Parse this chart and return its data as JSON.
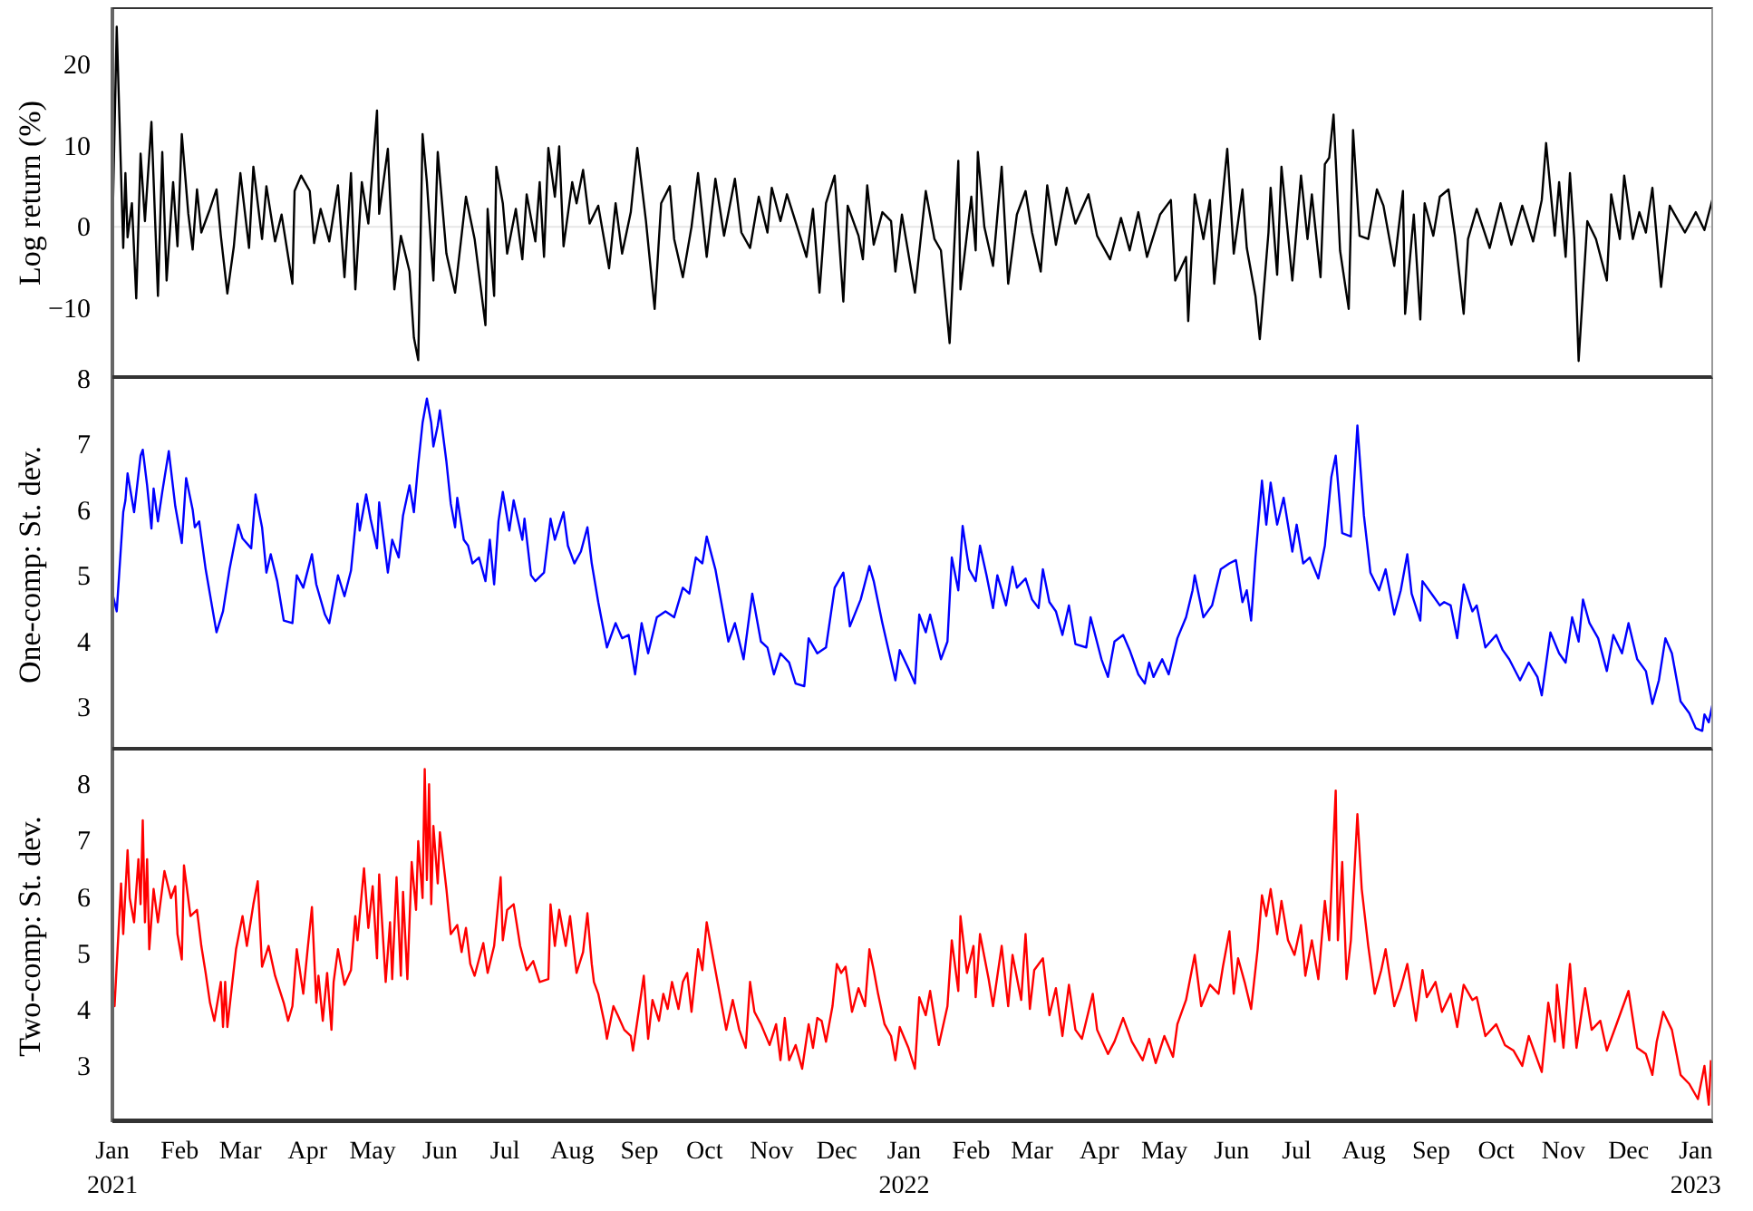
{
  "chart_data": [
    {
      "type": "line",
      "ylabel": "Log return (%)",
      "tick_labels": "y",
      "xlim": [
        "2021-01-01",
        "2023-01-09"
      ],
      "ylim": [
        -18.7,
        27
      ],
      "yticks": [
        -10,
        0,
        10,
        20
      ],
      "color": "#000000",
      "ref_lines": [
        {
          "axis": "y",
          "value": 0,
          "color": "#e6e6e6"
        }
      ],
      "x": [
        "2021-01-01",
        "2021-01-03",
        "2021-01-06",
        "2021-01-07",
        "2021-01-08",
        "2021-01-10",
        "2021-01-12",
        "2021-01-14",
        "2021-01-16",
        "2021-01-19",
        "2021-01-22",
        "2021-01-24",
        "2021-01-26",
        "2021-01-29",
        "2021-01-31",
        "2021-02-02",
        "2021-02-05",
        "2021-02-07",
        "2021-02-09",
        "2021-02-11",
        "2021-02-15",
        "2021-02-18",
        "2021-02-20",
        "2021-02-23",
        "2021-02-26",
        "2021-03-01",
        "2021-03-05",
        "2021-03-07",
        "2021-03-11",
        "2021-03-13",
        "2021-03-17",
        "2021-03-20",
        "2021-03-25",
        "2021-03-26",
        "2021-03-29",
        "2021-04-02",
        "2021-04-04",
        "2021-04-07",
        "2021-04-11",
        "2021-04-15",
        "2021-04-18",
        "2021-04-21",
        "2021-04-23",
        "2021-04-26",
        "2021-04-29",
        "2021-05-03",
        "2021-05-04",
        "2021-05-08",
        "2021-05-11",
        "2021-05-14",
        "2021-05-18",
        "2021-05-20",
        "2021-05-22",
        "2021-05-24",
        "2021-05-26",
        "2021-05-29",
        "2021-05-31",
        "2021-06-04",
        "2021-06-08",
        "2021-06-13",
        "2021-06-17",
        "2021-06-22",
        "2021-06-23",
        "2021-06-26",
        "2021-06-27",
        "2021-06-30",
        "2021-07-02",
        "2021-07-06",
        "2021-07-09",
        "2021-07-11",
        "2021-07-15",
        "2021-07-17",
        "2021-07-19",
        "2021-07-21",
        "2021-07-24",
        "2021-07-26",
        "2021-07-28",
        "2021-08-01",
        "2021-08-03",
        "2021-08-06",
        "2021-08-09",
        "2021-08-13",
        "2021-08-18",
        "2021-08-21",
        "2021-08-24",
        "2021-08-28",
        "2021-08-31",
        "2021-09-04",
        "2021-09-08",
        "2021-09-11",
        "2021-09-15",
        "2021-09-17",
        "2021-09-21",
        "2021-09-25",
        "2021-09-28",
        "2021-10-02",
        "2021-10-06",
        "2021-10-10",
        "2021-10-15",
        "2021-10-18",
        "2021-10-22",
        "2021-10-26",
        "2021-10-30",
        "2021-11-01",
        "2021-11-05",
        "2021-11-08",
        "2021-11-14",
        "2021-11-17",
        "2021-11-20",
        "2021-11-23",
        "2021-11-26",
        "2021-11-30",
        "2021-12-04",
        "2021-12-06",
        "2021-12-11",
        "2021-12-13",
        "2021-12-15",
        "2021-12-18",
        "2021-12-22",
        "2021-12-26",
        "2021-12-28",
        "2021-12-31",
        "2022-01-06",
        "2022-01-11",
        "2022-01-15",
        "2022-01-18",
        "2022-01-22",
        "2022-01-26",
        "2022-01-27",
        "2022-02-01",
        "2022-02-03",
        "2022-02-04",
        "2022-02-07",
        "2022-02-11",
        "2022-02-15",
        "2022-02-18",
        "2022-02-22",
        "2022-02-26",
        "2022-03-01",
        "2022-03-05",
        "2022-03-08",
        "2022-03-12",
        "2022-03-17",
        "2022-03-21",
        "2022-03-27",
        "2022-03-31",
        "2022-04-06",
        "2022-04-11",
        "2022-04-15",
        "2022-04-19",
        "2022-04-23",
        "2022-04-29",
        "2022-05-04",
        "2022-05-06",
        "2022-05-11",
        "2022-05-12",
        "2022-05-15",
        "2022-05-19",
        "2022-05-22",
        "2022-05-24",
        "2022-05-30",
        "2022-06-02",
        "2022-06-06",
        "2022-06-08",
        "2022-06-12",
        "2022-06-14",
        "2022-06-18",
        "2022-06-19",
        "2022-06-22",
        "2022-06-24",
        "2022-06-29",
        "2022-07-03",
        "2022-07-06",
        "2022-07-08",
        "2022-07-12",
        "2022-07-14",
        "2022-07-16",
        "2022-07-18",
        "2022-07-21",
        "2022-07-25",
        "2022-07-27",
        "2022-07-30",
        "2022-08-03",
        "2022-08-07",
        "2022-08-10",
        "2022-08-15",
        "2022-08-19",
        "2022-08-20",
        "2022-08-24",
        "2022-08-27",
        "2022-08-29",
        "2022-09-02",
        "2022-09-05",
        "2022-09-09",
        "2022-09-12",
        "2022-09-16",
        "2022-09-18",
        "2022-09-22",
        "2022-09-28",
        "2022-10-03",
        "2022-10-08",
        "2022-10-13",
        "2022-10-18",
        "2022-10-22",
        "2022-10-24",
        "2022-10-28",
        "2022-10-30",
        "2022-11-02",
        "2022-11-04",
        "2022-11-06",
        "2022-11-08",
        "2022-11-12",
        "2022-11-16",
        "2022-11-21",
        "2022-11-23",
        "2022-11-27",
        "2022-11-29",
        "2022-12-03",
        "2022-12-06",
        "2022-12-09",
        "2022-12-12",
        "2022-12-16",
        "2022-12-20",
        "2022-12-27",
        "2023-01-01",
        "2023-01-05",
        "2023-01-09"
      ],
      "values": [
        -0.7,
        24.6,
        -2.6,
        6.6,
        -1.3,
        2.9,
        -8.8,
        9,
        0.7,
        12.9,
        -8.5,
        9.2,
        -6.6,
        5.5,
        -2.4,
        11.4,
        1.6,
        -2.8,
        4.6,
        -0.7,
        2.2,
        4.6,
        -1.1,
        -8.2,
        -2.4,
        6.6,
        -2.6,
        7.4,
        -1.5,
        5,
        -1.8,
        1.5,
        -7,
        4.4,
        6.3,
        4.4,
        -2,
        2.2,
        -1.8,
        5.1,
        -6.2,
        6.6,
        -7.7,
        5.5,
        0.4,
        14.3,
        1.6,
        9.6,
        -7.7,
        -1.1,
        -5.5,
        -13.6,
        -16.4,
        11.4,
        5.5,
        -6.6,
        9.2,
        -3.3,
        -8.1,
        3.7,
        -1.5,
        -12.1,
        2.2,
        -8.5,
        7.4,
        2.9,
        -3.3,
        2.2,
        -4,
        4,
        -1.8,
        5.5,
        -3.7,
        9.7,
        3.7,
        9.9,
        -2.4,
        5.5,
        2.9,
        7,
        0.4,
        2.6,
        -5.1,
        2.9,
        -3.3,
        1.8,
        9.7,
        0.7,
        -10.1,
        2.9,
        5,
        -1.5,
        -6.2,
        0,
        6.6,
        -3.7,
        5.9,
        -1.1,
        5.9,
        -0.7,
        -2.6,
        3.7,
        -0.7,
        4.8,
        0.7,
        4,
        -1.1,
        -3.7,
        2.2,
        -8.1,
        2.9,
        6.3,
        -9.2,
        2.6,
        -1.1,
        -4,
        5.1,
        -2.2,
        1.8,
        0.7,
        -5.5,
        1.5,
        -8.1,
        4.4,
        -1.5,
        -2.9,
        -14.3,
        8.1,
        -7.7,
        3.7,
        -2.9,
        9.2,
        0,
        -4.8,
        7.4,
        -7,
        1.5,
        4.4,
        -0.7,
        -5.5,
        5.1,
        -2.2,
        4.8,
        0.4,
        4,
        -1.1,
        -4,
        1.1,
        -2.9,
        1.8,
        -3.7,
        1.5,
        3.3,
        -6.6,
        -3.7,
        -11.6,
        4,
        -1.5,
        3.3,
        -7,
        9.6,
        -3.3,
        4.6,
        -2.6,
        -8.5,
        -13.8,
        -0.7,
        4.8,
        -5.9,
        7.4,
        -6.6,
        6.3,
        -1.5,
        4,
        -6.2,
        7.7,
        8.5,
        13.8,
        -2.9,
        -10.1,
        11.9,
        -1.1,
        -1.5,
        4.6,
        2.6,
        -4.8,
        4.4,
        -10.7,
        1.5,
        -11.4,
        2.9,
        -1.1,
        3.7,
        4.6,
        -1.1,
        -10.7,
        -1.5,
        2.2,
        -2.6,
        2.9,
        -2.2,
        2.6,
        -1.8,
        3.3,
        10.3,
        -1.1,
        5.5,
        -3.7,
        6.6,
        -1.5,
        -16.5,
        0.7,
        -1.5,
        -6.6,
        4,
        -1.5,
        6.3,
        -1.5,
        1.8,
        -0.7,
        4.8,
        -7.4,
        2.6,
        -0.7,
        1.8,
        -0.4,
        3.7
      ]
    },
    {
      "type": "line",
      "ylabel": "One-comp: St. dev.",
      "tick_labels": "y",
      "xlim": [
        "2021-01-01",
        "2023-01-09"
      ],
      "ylim": [
        2.34,
        8
      ],
      "yticks": [
        3,
        4,
        5,
        6,
        7,
        8
      ],
      "color": "#0000ff",
      "x": [
        "2021-01-01",
        "2021-01-03",
        "2021-01-06",
        "2021-01-07",
        "2021-01-08",
        "2021-01-11",
        "2021-01-14",
        "2021-01-15",
        "2021-01-17",
        "2021-01-19",
        "2021-01-20",
        "2021-01-22",
        "2021-01-24",
        "2021-01-27",
        "2021-01-30",
        "2021-02-02",
        "2021-02-04",
        "2021-02-07",
        "2021-02-08",
        "2021-02-10",
        "2021-02-13",
        "2021-02-18",
        "2021-02-21",
        "2021-02-24",
        "2021-02-28",
        "2021-03-02",
        "2021-03-06",
        "2021-03-08",
        "2021-03-11",
        "2021-03-13",
        "2021-03-15",
        "2021-03-18",
        "2021-03-21",
        "2021-03-25",
        "2021-03-27",
        "2021-03-30",
        "2021-04-03",
        "2021-04-05",
        "2021-04-09",
        "2021-04-11",
        "2021-04-15",
        "2021-04-18",
        "2021-04-21",
        "2021-04-24",
        "2021-04-25",
        "2021-04-28",
        "2021-04-30",
        "2021-05-03",
        "2021-05-04",
        "2021-05-08",
        "2021-05-10",
        "2021-05-13",
        "2021-05-15",
        "2021-05-18",
        "2021-05-20",
        "2021-05-22",
        "2021-05-24",
        "2021-05-26",
        "2021-05-28",
        "2021-05-29",
        "2021-05-31",
        "2021-06-01",
        "2021-06-04",
        "2021-06-06",
        "2021-06-08",
        "2021-06-09",
        "2021-06-12",
        "2021-06-14",
        "2021-06-16",
        "2021-06-19",
        "2021-06-22",
        "2021-06-24",
        "2021-06-26",
        "2021-06-28",
        "2021-06-30",
        "2021-07-03",
        "2021-07-05",
        "2021-07-09",
        "2021-07-10",
        "2021-07-13",
        "2021-07-15",
        "2021-07-19",
        "2021-07-22",
        "2021-07-24",
        "2021-07-28",
        "2021-07-30",
        "2021-08-02",
        "2021-08-05",
        "2021-08-08",
        "2021-08-10",
        "2021-08-13",
        "2021-08-17",
        "2021-08-21",
        "2021-08-24",
        "2021-08-27",
        "2021-08-30",
        "2021-09-02",
        "2021-09-05",
        "2021-09-09",
        "2021-09-13",
        "2021-09-17",
        "2021-09-21",
        "2021-09-24",
        "2021-09-27",
        "2021-09-30",
        "2021-10-02",
        "2021-10-06",
        "2021-10-12",
        "2021-10-15",
        "2021-10-19",
        "2021-10-23",
        "2021-10-27",
        "2021-10-30",
        "2021-11-02",
        "2021-11-05",
        "2021-11-09",
        "2021-11-12",
        "2021-11-16",
        "2021-11-18",
        "2021-11-22",
        "2021-11-26",
        "2021-11-30",
        "2021-12-04",
        "2021-12-07",
        "2021-12-12",
        "2021-12-16",
        "2021-12-18",
        "2021-12-22",
        "2021-12-28",
        "2021-12-30",
        "2022-01-03",
        "2022-01-06",
        "2022-01-08",
        "2022-01-11",
        "2022-01-13",
        "2022-01-18",
        "2022-01-21",
        "2022-01-23",
        "2022-01-26",
        "2022-01-28",
        "2022-01-31",
        "2022-02-03",
        "2022-02-05",
        "2022-02-08",
        "2022-02-11",
        "2022-02-13",
        "2022-02-17",
        "2022-02-20",
        "2022-02-22",
        "2022-02-26",
        "2022-03-01",
        "2022-03-04",
        "2022-03-06",
        "2022-03-09",
        "2022-03-12",
        "2022-03-15",
        "2022-03-18",
        "2022-03-21",
        "2022-03-26",
        "2022-03-28",
        "2022-04-02",
        "2022-04-05",
        "2022-04-08",
        "2022-04-12",
        "2022-04-15",
        "2022-04-19",
        "2022-04-22",
        "2022-04-24",
        "2022-04-26",
        "2022-04-30",
        "2022-05-03",
        "2022-05-07",
        "2022-05-11",
        "2022-05-14",
        "2022-05-15",
        "2022-05-19",
        "2022-05-23",
        "2022-05-27",
        "2022-05-31",
        "2022-06-03",
        "2022-06-06",
        "2022-06-08",
        "2022-06-10",
        "2022-06-12",
        "2022-06-15",
        "2022-06-17",
        "2022-06-19",
        "2022-06-22",
        "2022-06-25",
        "2022-06-29",
        "2022-07-01",
        "2022-07-04",
        "2022-07-07",
        "2022-07-11",
        "2022-07-14",
        "2022-07-17",
        "2022-07-19",
        "2022-07-22",
        "2022-07-26",
        "2022-07-29",
        "2022-08-01",
        "2022-08-04",
        "2022-08-08",
        "2022-08-11",
        "2022-08-15",
        "2022-08-18",
        "2022-08-21",
        "2022-08-23",
        "2022-08-27",
        "2022-08-28",
        "2022-09-02",
        "2022-09-05",
        "2022-09-07",
        "2022-09-10",
        "2022-09-13",
        "2022-09-16",
        "2022-09-20",
        "2022-09-22",
        "2022-09-26",
        "2022-10-01",
        "2022-10-04",
        "2022-10-07",
        "2022-10-12",
        "2022-10-16",
        "2022-10-20",
        "2022-10-22",
        "2022-10-26",
        "2022-10-30",
        "2022-11-02",
        "2022-11-05",
        "2022-11-08",
        "2022-11-10",
        "2022-11-13",
        "2022-11-17",
        "2022-11-21",
        "2022-11-24",
        "2022-11-28",
        "2022-12-01",
        "2022-12-05",
        "2022-12-09",
        "2022-12-12",
        "2022-12-15",
        "2022-12-18",
        "2022-12-21",
        "2022-12-25",
        "2022-12-29",
        "2023-01-01",
        "2023-01-04",
        "2023-01-05",
        "2023-01-07",
        "2023-01-09"
      ],
      "values": [
        4.73,
        4.46,
        5.97,
        6.15,
        6.56,
        5.97,
        6.83,
        6.92,
        6.38,
        5.72,
        6.33,
        5.83,
        6.28,
        6.9,
        6.06,
        5.5,
        6.49,
        6.01,
        5.74,
        5.83,
        5.1,
        4.14,
        4.46,
        5.1,
        5.78,
        5.57,
        5.42,
        6.24,
        5.74,
        5.05,
        5.33,
        4.92,
        4.32,
        4.28,
        5.01,
        4.82,
        5.33,
        4.87,
        4.41,
        4.28,
        5.01,
        4.69,
        5.08,
        6.1,
        5.69,
        6.24,
        5.87,
        5.42,
        6.12,
        5.05,
        5.55,
        5.28,
        5.92,
        6.38,
        5.97,
        6.7,
        7.33,
        7.7,
        7.33,
        6.97,
        7.29,
        7.52,
        6.74,
        6.1,
        5.74,
        6.19,
        5.55,
        5.46,
        5.19,
        5.28,
        4.92,
        5.55,
        4.87,
        5.83,
        6.28,
        5.69,
        6.15,
        5.55,
        5.87,
        5.01,
        4.92,
        5.05,
        5.87,
        5.55,
        5.97,
        5.46,
        5.19,
        5.37,
        5.74,
        5.19,
        4.6,
        3.91,
        4.28,
        4.05,
        4.1,
        3.5,
        4.28,
        3.82,
        4.37,
        4.46,
        4.37,
        4.82,
        4.73,
        5.28,
        5.19,
        5.6,
        5.1,
        4.0,
        4.28,
        3.73,
        4.73,
        4.0,
        3.91,
        3.5,
        3.82,
        3.68,
        3.36,
        3.32,
        4.05,
        3.82,
        3.91,
        4.82,
        5.05,
        4.23,
        4.64,
        5.15,
        4.92,
        4.28,
        3.41,
        3.87,
        3.59,
        3.36,
        4.41,
        4.14,
        4.41,
        3.73,
        4.0,
        5.28,
        4.78,
        5.76,
        5.1,
        4.92,
        5.46,
        5.01,
        4.51,
        5.01,
        4.55,
        5.14,
        4.82,
        4.96,
        4.64,
        4.51,
        5.1,
        4.6,
        4.46,
        4.1,
        4.55,
        3.96,
        3.91,
        4.37,
        3.73,
        3.46,
        4.0,
        4.1,
        3.87,
        3.5,
        3.36,
        3.68,
        3.46,
        3.73,
        3.5,
        4.05,
        4.37,
        4.78,
        5.01,
        4.37,
        4.55,
        5.1,
        5.19,
        5.24,
        4.6,
        4.78,
        4.32,
        5.28,
        6.45,
        5.78,
        6.42,
        5.78,
        6.19,
        5.37,
        5.78,
        5.19,
        5.28,
        4.96,
        5.46,
        6.51,
        6.83,
        5.65,
        5.6,
        7.29,
        5.92,
        5.05,
        4.78,
        5.1,
        4.41,
        4.78,
        5.33,
        4.73,
        4.32,
        4.92,
        4.69,
        4.55,
        4.6,
        4.55,
        4.05,
        4.87,
        4.46,
        4.55,
        3.91,
        4.1,
        3.87,
        3.73,
        3.41,
        3.68,
        3.46,
        3.18,
        4.14,
        3.82,
        3.68,
        4.37,
        4.0,
        4.64,
        4.28,
        4.05,
        3.55,
        4.1,
        3.82,
        4.28,
        3.73,
        3.55,
        3.05,
        3.41,
        4.05,
        3.82,
        3.09,
        2.91,
        2.68,
        2.64,
        2.89,
        2.77,
        3.09
      ]
    },
    {
      "type": "line",
      "ylabel": "Two-comp: St. dev.",
      "xlim": [
        "2021-01-01",
        "2023-01-09"
      ],
      "ylim": [
        2.0,
        8.6
      ],
      "yticks": [
        3,
        4,
        5,
        6,
        7,
        8
      ],
      "color": "#ff0000",
      "xticks": [
        {
          "value": "2021-01-01",
          "label": "Jan\n2021"
        },
        {
          "value": "2021-02-01",
          "label": "Feb"
        },
        {
          "value": "2021-03-01",
          "label": "Mar"
        },
        {
          "value": "2021-04-01",
          "label": "Apr"
        },
        {
          "value": "2021-05-01",
          "label": "May"
        },
        {
          "value": "2021-06-01",
          "label": "Jun"
        },
        {
          "value": "2021-07-01",
          "label": "Jul"
        },
        {
          "value": "2021-08-01",
          "label": "Aug"
        },
        {
          "value": "2021-09-01",
          "label": "Sep"
        },
        {
          "value": "2021-10-01",
          "label": "Oct"
        },
        {
          "value": "2021-11-01",
          "label": "Nov"
        },
        {
          "value": "2021-12-01",
          "label": "Dec"
        },
        {
          "value": "2022-01-01",
          "label": "Jan\n2022"
        },
        {
          "value": "2022-02-01",
          "label": "Feb"
        },
        {
          "value": "2022-03-01",
          "label": "Mar"
        },
        {
          "value": "2022-04-01",
          "label": "Apr"
        },
        {
          "value": "2022-05-01",
          "label": "May"
        },
        {
          "value": "2022-06-01",
          "label": "Jun"
        },
        {
          "value": "2022-07-01",
          "label": "Jul"
        },
        {
          "value": "2022-08-01",
          "label": "Aug"
        },
        {
          "value": "2022-09-01",
          "label": "Sep"
        },
        {
          "value": "2022-10-01",
          "label": "Oct"
        },
        {
          "value": "2022-11-01",
          "label": "Nov"
        },
        {
          "value": "2022-12-01",
          "label": "Dec"
        },
        {
          "value": "2023-01-01",
          "label": "Jan\n2023"
        }
      ],
      "x": [
        "2021-01-01",
        "2021-01-02",
        "2021-01-05",
        "2021-01-06",
        "2021-01-08",
        "2021-01-09",
        "2021-01-11",
        "2021-01-13",
        "2021-01-14",
        "2021-01-15",
        "2021-01-16",
        "2021-01-17",
        "2021-01-18",
        "2021-01-20",
        "2021-01-22",
        "2021-01-25",
        "2021-01-28",
        "2021-01-30",
        "2021-01-31",
        "2021-02-02",
        "2021-02-03",
        "2021-02-06",
        "2021-02-09",
        "2021-02-11",
        "2021-02-13",
        "2021-02-15",
        "2021-02-17",
        "2021-02-20",
        "2021-02-21",
        "2021-02-22",
        "2021-02-23",
        "2021-02-25",
        "2021-02-27",
        "2021-03-02",
        "2021-03-04",
        "2021-03-07",
        "2021-03-09",
        "2021-03-11",
        "2021-03-14",
        "2021-03-17",
        "2021-03-21",
        "2021-03-23",
        "2021-03-25",
        "2021-03-27",
        "2021-03-30",
        "2021-04-01",
        "2021-04-03",
        "2021-04-05",
        "2021-04-06",
        "2021-04-08",
        "2021-04-10",
        "2021-04-12",
        "2021-04-13",
        "2021-04-15",
        "2021-04-18",
        "2021-04-21",
        "2021-04-23",
        "2021-04-24",
        "2021-04-27",
        "2021-04-29",
        "2021-05-01",
        "2021-05-03",
        "2021-05-04",
        "2021-05-07",
        "2021-05-09",
        "2021-05-10",
        "2021-05-12",
        "2021-05-14",
        "2021-05-15",
        "2021-05-17",
        "2021-05-19",
        "2021-05-21",
        "2021-05-22",
        "2021-05-24",
        "2021-05-25",
        "2021-05-26",
        "2021-05-27",
        "2021-05-28",
        "2021-05-29",
        "2021-05-31",
        "2021-06-01",
        "2021-06-04",
        "2021-06-06",
        "2021-06-09",
        "2021-06-11",
        "2021-06-13",
        "2021-06-15",
        "2021-06-17",
        "2021-06-21",
        "2021-06-23",
        "2021-06-26",
        "2021-06-29",
        "2021-06-30",
        "2021-07-02",
        "2021-07-05",
        "2021-07-08",
        "2021-07-11",
        "2021-07-14",
        "2021-07-17",
        "2021-07-21",
        "2021-07-22",
        "2021-07-24",
        "2021-07-26",
        "2021-07-29",
        "2021-07-31",
        "2021-08-03",
        "2021-08-06",
        "2021-08-08",
        "2021-08-10",
        "2021-08-11",
        "2021-08-13",
        "2021-08-16",
        "2021-08-17",
        "2021-08-20",
        "2021-08-22",
        "2021-08-25",
        "2021-08-28",
        "2021-08-29",
        "2021-09-01",
        "2021-09-03",
        "2021-09-05",
        "2021-09-07",
        "2021-09-10",
        "2021-09-12",
        "2021-09-14",
        "2021-09-16",
        "2021-09-19",
        "2021-09-21",
        "2021-09-23",
        "2021-09-25",
        "2021-09-28",
        "2021-09-30",
        "2021-10-02",
        "2021-10-05",
        "2021-10-08",
        "2021-10-11",
        "2021-10-14",
        "2021-10-17",
        "2021-10-20",
        "2021-10-22",
        "2021-10-24",
        "2021-10-27",
        "2021-10-31",
        "2021-11-03",
        "2021-11-05",
        "2021-11-07",
        "2021-11-09",
        "2021-11-12",
        "2021-11-15",
        "2021-11-18",
        "2021-11-20",
        "2021-11-22",
        "2021-11-24",
        "2021-11-26",
        "2021-11-29",
        "2021-12-01",
        "2021-12-03",
        "2021-12-05",
        "2021-12-08",
        "2021-12-11",
        "2021-12-14",
        "2021-12-16",
        "2021-12-18",
        "2021-12-20",
        "2021-12-23",
        "2021-12-26",
        "2021-12-28",
        "2021-12-30",
        "2022-01-03",
        "2022-01-06",
        "2022-01-08",
        "2022-01-11",
        "2022-01-13",
        "2022-01-17",
        "2022-01-21",
        "2022-01-23",
        "2022-01-26",
        "2022-01-27",
        "2022-01-30",
        "2022-02-02",
        "2022-02-03",
        "2022-02-05",
        "2022-02-09",
        "2022-02-11",
        "2022-02-15",
        "2022-02-18",
        "2022-02-20",
        "2022-02-24",
        "2022-02-26",
        "2022-02-28",
        "2022-03-02",
        "2022-03-06",
        "2022-03-09",
        "2022-03-12",
        "2022-03-15",
        "2022-03-18",
        "2022-03-21",
        "2022-03-24",
        "2022-03-29",
        "2022-03-31",
        "2022-04-05",
        "2022-04-08",
        "2022-04-12",
        "2022-04-16",
        "2022-04-21",
        "2022-04-24",
        "2022-04-27",
        "2022-05-01",
        "2022-05-05",
        "2022-05-07",
        "2022-05-11",
        "2022-05-15",
        "2022-05-18",
        "2022-05-22",
        "2022-05-26",
        "2022-05-28",
        "2022-05-31",
        "2022-06-02",
        "2022-06-04",
        "2022-06-07",
        "2022-06-10",
        "2022-06-13",
        "2022-06-15",
        "2022-06-17",
        "2022-06-19",
        "2022-06-22",
        "2022-06-24",
        "2022-06-27",
        "2022-06-30",
        "2022-07-03",
        "2022-07-05",
        "2022-07-08",
        "2022-07-11",
        "2022-07-14",
        "2022-07-16",
        "2022-07-19",
        "2022-07-20",
        "2022-07-22",
        "2022-07-24",
        "2022-07-26",
        "2022-07-29",
        "2022-07-31",
        "2022-08-03",
        "2022-08-06",
        "2022-08-09",
        "2022-08-11",
        "2022-08-15",
        "2022-08-18",
        "2022-08-21",
        "2022-08-25",
        "2022-08-28",
        "2022-08-30",
        "2022-09-03",
        "2022-09-06",
        "2022-09-10",
        "2022-09-13",
        "2022-09-16",
        "2022-09-20",
        "2022-09-22",
        "2022-09-26",
        "2022-10-01",
        "2022-10-05",
        "2022-10-09",
        "2022-10-13",
        "2022-10-16",
        "2022-10-19",
        "2022-10-22",
        "2022-10-25",
        "2022-10-28",
        "2022-10-29",
        "2022-11-01",
        "2022-11-04",
        "2022-11-07",
        "2022-11-11",
        "2022-11-14",
        "2022-11-18",
        "2022-11-21",
        "2022-11-25",
        "2022-12-01",
        "2022-12-05",
        "2022-12-09",
        "2022-12-12",
        "2022-12-14",
        "2022-12-17",
        "2022-12-21",
        "2022-12-25",
        "2022-12-29",
        "2023-01-02",
        "2023-01-05",
        "2023-01-07",
        "2023-01-08"
      ],
      "values": [
        4.38,
        4.06,
        6.24,
        5.34,
        6.83,
        5.98,
        5.55,
        6.67,
        5.87,
        7.36,
        5.55,
        6.67,
        5.07,
        6.14,
        5.55,
        6.46,
        5.98,
        6.19,
        5.34,
        4.89,
        6.56,
        5.66,
        5.77,
        5.13,
        4.65,
        4.12,
        3.8,
        4.49,
        3.69,
        4.49,
        3.69,
        4.38,
        5.07,
        5.66,
        5.13,
        5.87,
        6.28,
        4.76,
        5.13,
        4.6,
        4.12,
        3.8,
        4.06,
        5.07,
        4.28,
        5.07,
        5.82,
        4.12,
        4.6,
        3.8,
        4.65,
        3.64,
        4.49,
        5.07,
        4.44,
        4.7,
        5.66,
        5.23,
        6.51,
        5.45,
        6.19,
        4.91,
        6.4,
        4.49,
        5.55,
        4.54,
        6.35,
        4.6,
        6.09,
        4.54,
        6.62,
        5.77,
        6.99,
        5.98,
        8.27,
        6.3,
        8.0,
        5.87,
        7.26,
        6.24,
        7.15,
        6.14,
        5.34,
        5.5,
        5.02,
        5.45,
        4.81,
        4.6,
        5.18,
        4.65,
        5.13,
        6.35,
        5.23,
        5.77,
        5.87,
        5.13,
        4.7,
        4.86,
        4.49,
        4.54,
        5.87,
        5.13,
        5.77,
        5.13,
        5.66,
        4.65,
        5.02,
        5.71,
        4.81,
        4.49,
        4.28,
        3.74,
        3.48,
        4.06,
        3.9,
        3.64,
        3.53,
        3.27,
        4.06,
        4.6,
        3.48,
        4.17,
        3.8,
        4.28,
        4.01,
        4.49,
        4.01,
        4.49,
        4.65,
        3.96,
        5.07,
        4.7,
        5.55,
        4.91,
        4.28,
        3.64,
        4.17,
        3.64,
        3.32,
        4.49,
        3.96,
        3.74,
        3.37,
        3.74,
        3.1,
        3.85,
        3.1,
        3.37,
        2.95,
        3.74,
        3.32,
        3.85,
        3.8,
        3.43,
        4.06,
        4.81,
        4.65,
        4.76,
        3.96,
        4.38,
        4.06,
        5.07,
        4.7,
        4.28,
        3.74,
        3.53,
        3.1,
        3.69,
        3.32,
        2.95,
        4.22,
        3.9,
        4.33,
        3.37,
        4.06,
        5.23,
        4.33,
        5.66,
        4.65,
        5.13,
        4.22,
        5.34,
        4.54,
        4.06,
        5.13,
        4.06,
        4.97,
        4.17,
        5.34,
        4.01,
        4.7,
        4.91,
        3.9,
        4.38,
        3.53,
        4.44,
        3.64,
        3.48,
        4.28,
        3.64,
        3.21,
        3.43,
        3.85,
        3.43,
        3.1,
        3.48,
        3.05,
        3.53,
        3.16,
        3.74,
        4.17,
        4.97,
        4.06,
        4.44,
        4.28,
        4.76,
        5.39,
        4.28,
        4.91,
        4.49,
        4.01,
        5.07,
        6.03,
        5.66,
        6.14,
        5.34,
        5.93,
        5.23,
        4.97,
        5.5,
        4.6,
        5.23,
        4.54,
        5.93,
        5.23,
        7.89,
        5.23,
        6.62,
        4.54,
        5.23,
        7.47,
        6.14,
        5.13,
        4.28,
        4.7,
        5.07,
        4.06,
        4.38,
        4.81,
        3.8,
        4.7,
        4.22,
        4.49,
        3.96,
        4.28,
        3.69,
        4.44,
        4.17,
        4.22,
        3.53,
        3.74,
        3.37,
        3.27,
        3.0,
        3.53,
        3.21,
        2.89,
        4.12,
        3.43,
        4.44,
        3.32,
        4.81,
        3.32,
        4.38,
        3.64,
        3.8,
        3.27,
        3.69,
        4.33,
        3.32,
        3.21,
        2.84,
        3.43,
        3.96,
        3.64,
        2.84,
        2.68,
        2.41,
        3.0,
        2.31,
        3.1
      ]
    }
  ]
}
